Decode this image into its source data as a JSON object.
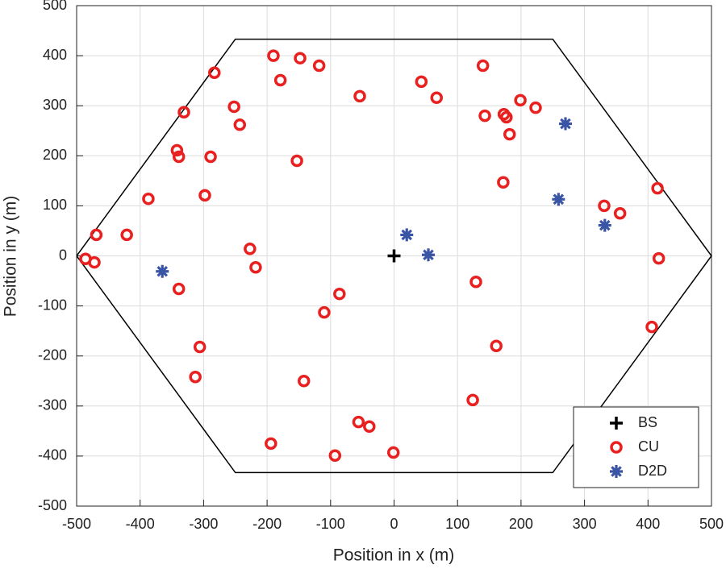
{
  "chart_data": {
    "type": "scatter",
    "xlabel": "Position in x (m)",
    "ylabel": "Position in y (m)",
    "xlim": [
      -500,
      500
    ],
    "ylim": [
      -500,
      500
    ],
    "xticks": [
      -500,
      -400,
      -300,
      -200,
      -100,
      0,
      100,
      200,
      300,
      400,
      500
    ],
    "yticks": [
      -500,
      -400,
      -300,
      -200,
      -100,
      0,
      100,
      200,
      300,
      400,
      500
    ],
    "grid": true,
    "legend": "lower right",
    "boundary": {
      "color": "#000000",
      "x": [
        -500,
        -250,
        250,
        500,
        250,
        -250,
        -500
      ],
      "values": [
        0,
        433,
        433,
        0,
        -433,
        -433,
        0
      ]
    },
    "series": [
      {
        "name": "BS",
        "color": "#000000",
        "marker": "plus",
        "x": [
          0
        ],
        "values": [
          0
        ]
      },
      {
        "name": "CU",
        "color": "#e8201f",
        "marker": "circle",
        "x": [
          -283,
          -190,
          -148,
          -118,
          -179,
          -252,
          -243,
          -331,
          -54,
          43,
          67,
          140,
          143,
          173,
          177,
          182,
          199,
          223,
          -342,
          -339,
          -289,
          -153,
          -387,
          -298,
          172,
          331,
          356,
          415,
          -469,
          -421,
          -227,
          -486,
          -472,
          -218,
          -339,
          -86,
          -110,
          129,
          417,
          406,
          -306,
          161,
          -313,
          -142,
          124,
          -56,
          -39,
          -194,
          -93,
          -1
        ],
        "values": [
          366,
          400,
          395,
          380,
          351,
          298,
          262,
          287,
          319,
          348,
          316,
          380,
          280,
          283,
          277,
          243,
          311,
          296,
          211,
          198,
          198,
          190,
          114,
          121,
          147,
          100,
          85,
          135,
          42,
          42,
          14,
          -6,
          -13,
          -23,
          -66,
          -76,
          -113,
          -52,
          -5,
          -142,
          -182,
          -180,
          -242,
          -250,
          -288,
          -332,
          -341,
          -375,
          -399,
          -393
        ]
      },
      {
        "name": "D2D",
        "color": "#3a55a5",
        "marker": "asterisk",
        "x": [
          -365,
          20,
          54,
          259,
          270,
          332
        ],
        "values": [
          -31,
          42,
          2,
          113,
          264,
          61
        ]
      }
    ]
  }
}
